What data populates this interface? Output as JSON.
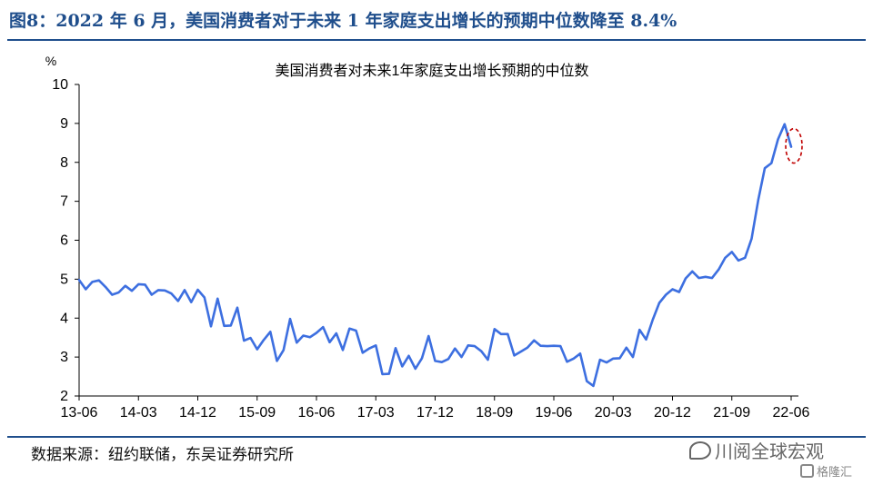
{
  "figure": {
    "title": "图8：2022 年 6 月，美国消费者对于未来 1 年家庭支出增长的预期中位数降至 8.4%",
    "source": "数据来源：纽约联储，东吴证券研究所",
    "watermark": "川阅全球宏观",
    "stamp": "格隆汇",
    "accent_color": "#1f4e8c"
  },
  "chart_data": {
    "type": "line",
    "title": "美国消费者对未来1年家庭支出增长预期的中位数",
    "ylabel": "%",
    "xlabel": "",
    "ylim": [
      2,
      10
    ],
    "yticks": [
      2,
      3,
      4,
      5,
      6,
      7,
      8,
      9,
      10
    ],
    "xtick_labels": [
      "13-06",
      "14-03",
      "14-12",
      "15-09",
      "16-06",
      "17-03",
      "17-12",
      "18-09",
      "19-06",
      "20-03",
      "20-12",
      "21-09",
      "22-06"
    ],
    "grid": false,
    "line_color": "#3d6fe0",
    "highlight_color": "#c00000",
    "highlight_index": 108,
    "series": [
      {
        "values": [
          4.98,
          4.74,
          4.93,
          4.97,
          4.8,
          4.6,
          4.66,
          4.83,
          4.7,
          4.87,
          4.86,
          4.6,
          4.72,
          4.71,
          4.63,
          4.44,
          4.72,
          4.41,
          4.73,
          4.53,
          3.79,
          4.5,
          3.8,
          3.81,
          4.27,
          3.42,
          3.49,
          3.2,
          3.44,
          3.65,
          2.9,
          3.18,
          3.98,
          3.37,
          3.55,
          3.51,
          3.62,
          3.77,
          3.38,
          3.61,
          3.18,
          3.73,
          3.68,
          3.11,
          3.22,
          3.3,
          2.56,
          2.57,
          3.23,
          2.76,
          3.03,
          2.7,
          2.97,
          3.54,
          2.9,
          2.87,
          2.95,
          3.22,
          3.0,
          3.3,
          3.28,
          3.15,
          2.93,
          3.72,
          3.59,
          3.59,
          3.04,
          3.14,
          3.24,
          3.43,
          3.29,
          3.28,
          3.29,
          3.28,
          2.88,
          2.96,
          3.09,
          2.38,
          2.26,
          2.93,
          2.86,
          2.96,
          2.97,
          3.24,
          3.0,
          3.7,
          3.45,
          3.96,
          4.39,
          4.6,
          4.74,
          4.67,
          5.02,
          5.2,
          5.03,
          5.06,
          5.03,
          5.25,
          5.55,
          5.7,
          5.48,
          5.55,
          6.04,
          7.03,
          7.85,
          7.98,
          8.59,
          8.98,
          8.4
        ]
      }
    ]
  }
}
